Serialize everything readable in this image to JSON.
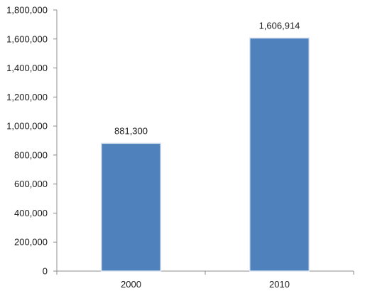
{
  "chart_data": {
    "type": "bar",
    "categories": [
      "2000",
      "2010"
    ],
    "values": [
      881300,
      1606914
    ],
    "data_labels": [
      "881,300",
      "1,606,914"
    ],
    "y_tick_labels": [
      "0",
      "200,000",
      "400,000",
      "600,000",
      "800,000",
      "1,000,000",
      "1,200,000",
      "1,400,000",
      "1,600,000",
      "1,800,000"
    ],
    "y_ticks": [
      0,
      200000,
      400000,
      600000,
      800000,
      1000000,
      1200000,
      1400000,
      1600000,
      1800000
    ],
    "ylim": [
      0,
      1800000
    ],
    "title": "",
    "xlabel": "",
    "ylabel": "",
    "grid": false,
    "legend": "none",
    "bar_color": "#4f81bd",
    "bar_edge_color": "#dde6f1"
  }
}
